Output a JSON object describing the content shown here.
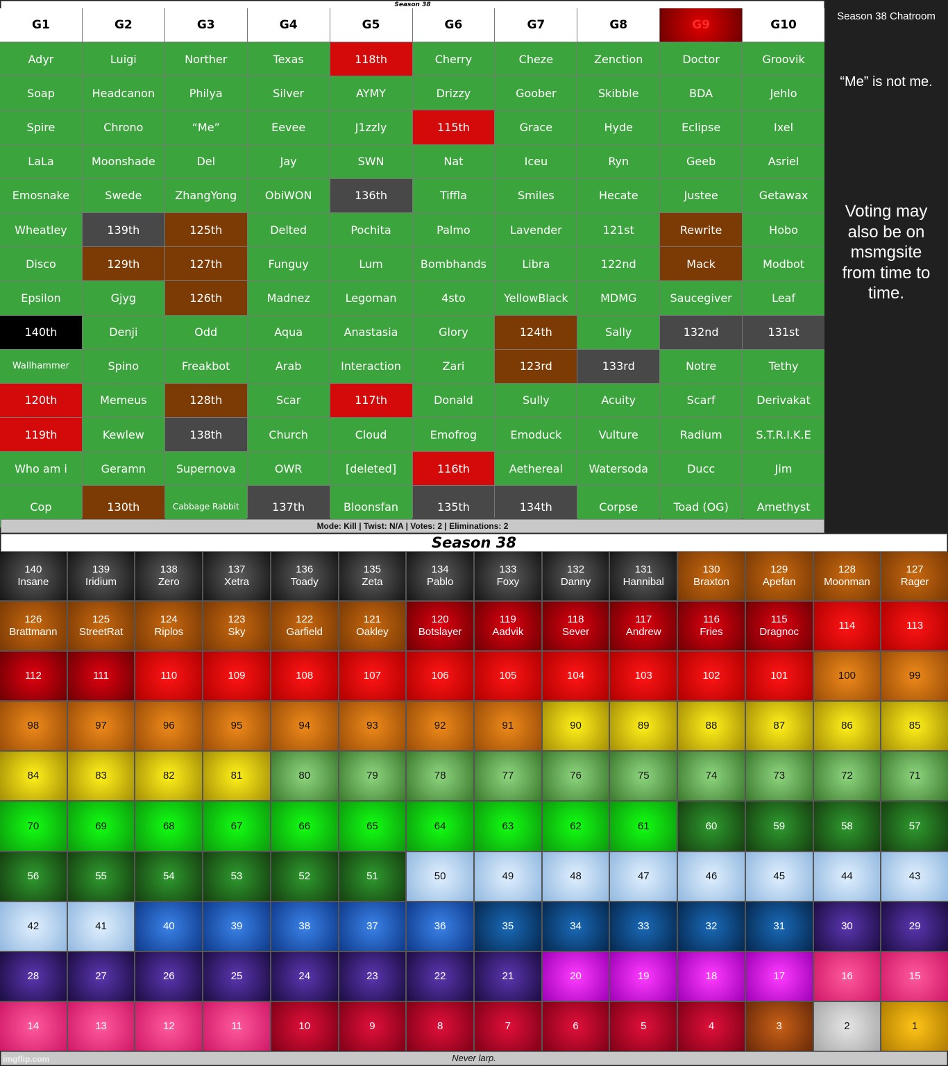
{
  "top_title": "Season 38",
  "group_headers": [
    "G1",
    "G2",
    "G3",
    "G4",
    "G5",
    "G6",
    "G7",
    "G8",
    "G9",
    "G10"
  ],
  "group_rows": [
    [
      "Adyr",
      "Luigi",
      "Norther",
      "Texas",
      "118th",
      "Cherry",
      "Cheze",
      "Zenction",
      "Doctor",
      "Groovik"
    ],
    [
      "Soap",
      "Headcanon",
      "Philya",
      "Silver",
      "AYMY",
      "Drizzy",
      "Goober",
      "Skibble",
      "BDA",
      "Jehlo"
    ],
    [
      "Spire",
      "Chrono",
      "“Me”",
      "Eevee",
      "J1zzly",
      "115th",
      "Grace",
      "Hyde",
      "Eclipse",
      "Ixel"
    ],
    [
      "LaLa",
      "Moonshade",
      "Del",
      "Jay",
      "SWN",
      "Nat",
      "Iceu",
      "Ryn",
      "Geeb",
      "Asriel"
    ],
    [
      "Emosnake",
      "Swede",
      "ZhangYong",
      "ObiWON",
      "136th",
      "Tiffla",
      "Smiles",
      "Hecate",
      "Justee",
      "Getawax"
    ],
    [
      "Wheatley",
      "139th",
      "125th",
      "Delted",
      "Pochita",
      "Palmo",
      "Lavender",
      "121st",
      "Rewrite",
      "Hobo"
    ],
    [
      "Disco",
      "129th",
      "127th",
      "Funguy",
      "Lum",
      "Bombhands",
      "Libra",
      "122nd",
      "Mack",
      "Modbot"
    ],
    [
      "Epsilon",
      "Gjyg",
      "126th",
      "Madnez",
      "Legoman",
      "4sto",
      "YellowBlack",
      "MDMG",
      "Saucegiver",
      "Leaf"
    ],
    [
      "140th",
      "Denji",
      "Odd",
      "Aqua",
      "Anastasia",
      "Glory",
      "124th",
      "Sally",
      "132nd",
      "131st"
    ],
    [
      "Wallhammer",
      "Spino",
      "Freakbot",
      "Arab",
      "Interaction",
      "Zari",
      "123rd",
      "133rd",
      "Notre",
      "Tethy"
    ],
    [
      "120th",
      "Memeus",
      "128th",
      "Scar",
      "117th",
      "Donald",
      "Sully",
      "Acuity",
      "Scarf",
      "Derivakat"
    ],
    [
      "119th",
      "Kewlew",
      "138th",
      "Church",
      "Cloud",
      "Emofrog",
      "Emoduck",
      "Vulture",
      "Radium",
      "S.T.R.I.K.E"
    ],
    [
      "Who am i",
      "Geramn",
      "Supernova",
      "OWR",
      "[deleted]",
      "116th",
      "Aethereal",
      "Watersoda",
      "Ducc",
      "Jim"
    ],
    [
      "Cop",
      "130th",
      "Cabbage Rabbit",
      "137th",
      "Bloonsfan",
      "135th",
      "134th",
      "Corpse",
      "Toad (OG)",
      "Amethyst"
    ]
  ],
  "group_cell_colors": [
    "gggg r gggg g",
    "gggggggggg",
    "ggggg r gggg",
    "gggggggggg",
    "gggg k ggggg",
    "g k o ggggg o gg",
    "g o o ggggg o gg",
    "gg o ggggggg",
    "b ggggg o g k k",
    "gggggg o k gg",
    "r g o g r ggggg",
    "r g k ggggggg",
    "ggggg r gggg",
    "g o g k g k k ggg"
  ],
  "mode_bar": "Mode: Kill | Twist: N/A | Votes: 2 | Eliminations: 2",
  "chatroom_title": "Season 38 Chatroom",
  "chatroom_note": "“Me” is not me.",
  "chatroom_voting": "Voting may also be on msmgsite from time to time.",
  "bottom_title": "Season 38",
  "placements": [
    {
      "rank": "140",
      "name": "Insane",
      "tone": "dark"
    },
    {
      "rank": "139",
      "name": "Iridium",
      "tone": "dark"
    },
    {
      "rank": "138",
      "name": "Zero",
      "tone": "dark"
    },
    {
      "rank": "137",
      "name": "Xetra",
      "tone": "dark"
    },
    {
      "rank": "136",
      "name": "Toady",
      "tone": "dark"
    },
    {
      "rank": "135",
      "name": "Zeta",
      "tone": "dark"
    },
    {
      "rank": "134",
      "name": "Pablo",
      "tone": "dark"
    },
    {
      "rank": "133",
      "name": "Foxy",
      "tone": "dark"
    },
    {
      "rank": "132",
      "name": "Danny",
      "tone": "dark"
    },
    {
      "rank": "131",
      "name": "Hannibal",
      "tone": "dark"
    },
    {
      "rank": "130",
      "name": "Braxton",
      "tone": "brown"
    },
    {
      "rank": "129",
      "name": "Apefan",
      "tone": "brown"
    },
    {
      "rank": "128",
      "name": "Moonman",
      "tone": "brown"
    },
    {
      "rank": "127",
      "name": "Rager",
      "tone": "brown"
    },
    {
      "rank": "126",
      "name": "Brattmann",
      "tone": "brown"
    },
    {
      "rank": "125",
      "name": "StreetRat",
      "tone": "brown"
    },
    {
      "rank": "124",
      "name": "Riplos",
      "tone": "brown"
    },
    {
      "rank": "123",
      "name": "Sky",
      "tone": "brown"
    },
    {
      "rank": "122",
      "name": "Garfield",
      "tone": "brown"
    },
    {
      "rank": "121",
      "name": "Oakley",
      "tone": "brown"
    },
    {
      "rank": "120",
      "name": "Botslayer",
      "tone": "dred"
    },
    {
      "rank": "119",
      "name": "Aadvik",
      "tone": "dred"
    },
    {
      "rank": "118",
      "name": "Sever",
      "tone": "dred"
    },
    {
      "rank": "117",
      "name": "Andrew",
      "tone": "dred"
    },
    {
      "rank": "116",
      "name": "Fries",
      "tone": "dred"
    },
    {
      "rank": "115",
      "name": "Dragnoc",
      "tone": "dred"
    },
    {
      "rank": "114",
      "name": "",
      "tone": "red"
    },
    {
      "rank": "113",
      "name": "",
      "tone": "red"
    },
    {
      "rank": "112",
      "name": "",
      "tone": "dred"
    },
    {
      "rank": "111",
      "name": "",
      "tone": "dred"
    },
    {
      "rank": "110",
      "name": "",
      "tone": "red"
    },
    {
      "rank": "109",
      "name": "",
      "tone": "red"
    },
    {
      "rank": "108",
      "name": "",
      "tone": "red"
    },
    {
      "rank": "107",
      "name": "",
      "tone": "red"
    },
    {
      "rank": "106",
      "name": "",
      "tone": "red"
    },
    {
      "rank": "105",
      "name": "",
      "tone": "red"
    },
    {
      "rank": "104",
      "name": "",
      "tone": "red"
    },
    {
      "rank": "103",
      "name": "",
      "tone": "red"
    },
    {
      "rank": "102",
      "name": "",
      "tone": "red"
    },
    {
      "rank": "101",
      "name": "",
      "tone": "red"
    },
    {
      "rank": "100",
      "name": "",
      "tone": "orange"
    },
    {
      "rank": "99",
      "name": "",
      "tone": "orange"
    },
    {
      "rank": "98",
      "name": "",
      "tone": "orange"
    },
    {
      "rank": "97",
      "name": "",
      "tone": "orange"
    },
    {
      "rank": "96",
      "name": "",
      "tone": "orange"
    },
    {
      "rank": "95",
      "name": "",
      "tone": "orange"
    },
    {
      "rank": "94",
      "name": "",
      "tone": "orange"
    },
    {
      "rank": "93",
      "name": "",
      "tone": "orange"
    },
    {
      "rank": "92",
      "name": "",
      "tone": "orange"
    },
    {
      "rank": "91",
      "name": "",
      "tone": "orange"
    },
    {
      "rank": "90",
      "name": "",
      "tone": "yellow"
    },
    {
      "rank": "89",
      "name": "",
      "tone": "yellow"
    },
    {
      "rank": "88",
      "name": "",
      "tone": "yellow"
    },
    {
      "rank": "87",
      "name": "",
      "tone": "yellow"
    },
    {
      "rank": "86",
      "name": "",
      "tone": "yellow"
    },
    {
      "rank": "85",
      "name": "",
      "tone": "yellow"
    },
    {
      "rank": "84",
      "name": "",
      "tone": "yellow"
    },
    {
      "rank": "83",
      "name": "",
      "tone": "yellow"
    },
    {
      "rank": "82",
      "name": "",
      "tone": "yellow"
    },
    {
      "rank": "81",
      "name": "",
      "tone": "yellow"
    },
    {
      "rank": "80",
      "name": "",
      "tone": "lgreen"
    },
    {
      "rank": "79",
      "name": "",
      "tone": "lgreen"
    },
    {
      "rank": "78",
      "name": "",
      "tone": "lgreen"
    },
    {
      "rank": "77",
      "name": "",
      "tone": "lgreen"
    },
    {
      "rank": "76",
      "name": "",
      "tone": "lgreen"
    },
    {
      "rank": "75",
      "name": "",
      "tone": "lgreen"
    },
    {
      "rank": "74",
      "name": "",
      "tone": "lgreen"
    },
    {
      "rank": "73",
      "name": "",
      "tone": "lgreen"
    },
    {
      "rank": "72",
      "name": "",
      "tone": "lgreen"
    },
    {
      "rank": "71",
      "name": "",
      "tone": "lgreen"
    },
    {
      "rank": "70",
      "name": "",
      "tone": "green"
    },
    {
      "rank": "69",
      "name": "",
      "tone": "green"
    },
    {
      "rank": "68",
      "name": "",
      "tone": "green"
    },
    {
      "rank": "67",
      "name": "",
      "tone": "green"
    },
    {
      "rank": "66",
      "name": "",
      "tone": "green"
    },
    {
      "rank": "65",
      "name": "",
      "tone": "green"
    },
    {
      "rank": "64",
      "name": "",
      "tone": "green"
    },
    {
      "rank": "63",
      "name": "",
      "tone": "green"
    },
    {
      "rank": "62",
      "name": "",
      "tone": "green"
    },
    {
      "rank": "61",
      "name": "",
      "tone": "green"
    },
    {
      "rank": "60",
      "name": "",
      "tone": "dgreen"
    },
    {
      "rank": "59",
      "name": "",
      "tone": "dgreen"
    },
    {
      "rank": "58",
      "name": "",
      "tone": "dgreen"
    },
    {
      "rank": "57",
      "name": "",
      "tone": "dgreen"
    },
    {
      "rank": "56",
      "name": "",
      "tone": "dgreen"
    },
    {
      "rank": "55",
      "name": "",
      "tone": "dgreen"
    },
    {
      "rank": "54",
      "name": "",
      "tone": "dgreen"
    },
    {
      "rank": "53",
      "name": "",
      "tone": "dgreen"
    },
    {
      "rank": "52",
      "name": "",
      "tone": "dgreen"
    },
    {
      "rank": "51",
      "name": "",
      "tone": "dgreen"
    },
    {
      "rank": "50",
      "name": "",
      "tone": "lblue"
    },
    {
      "rank": "49",
      "name": "",
      "tone": "lblue"
    },
    {
      "rank": "48",
      "name": "",
      "tone": "lblue"
    },
    {
      "rank": "47",
      "name": "",
      "tone": "lblue"
    },
    {
      "rank": "46",
      "name": "",
      "tone": "lblue"
    },
    {
      "rank": "45",
      "name": "",
      "tone": "lblue"
    },
    {
      "rank": "44",
      "name": "",
      "tone": "lblue"
    },
    {
      "rank": "43",
      "name": "",
      "tone": "lblue"
    },
    {
      "rank": "42",
      "name": "",
      "tone": "lblue"
    },
    {
      "rank": "41",
      "name": "",
      "tone": "lblue"
    },
    {
      "rank": "40",
      "name": "",
      "tone": "blue"
    },
    {
      "rank": "39",
      "name": "",
      "tone": "blue"
    },
    {
      "rank": "38",
      "name": "",
      "tone": "blue"
    },
    {
      "rank": "37",
      "name": "",
      "tone": "blue"
    },
    {
      "rank": "36",
      "name": "",
      "tone": "blue"
    },
    {
      "rank": "35",
      "name": "",
      "tone": "nblue"
    },
    {
      "rank": "34",
      "name": "",
      "tone": "nblue"
    },
    {
      "rank": "33",
      "name": "",
      "tone": "nblue"
    },
    {
      "rank": "32",
      "name": "",
      "tone": "nblue"
    },
    {
      "rank": "31",
      "name": "",
      "tone": "nblue"
    },
    {
      "rank": "30",
      "name": "",
      "tone": "purple"
    },
    {
      "rank": "29",
      "name": "",
      "tone": "purple"
    },
    {
      "rank": "28",
      "name": "",
      "tone": "purple"
    },
    {
      "rank": "27",
      "name": "",
      "tone": "purple"
    },
    {
      "rank": "26",
      "name": "",
      "tone": "purple"
    },
    {
      "rank": "25",
      "name": "",
      "tone": "purple"
    },
    {
      "rank": "24",
      "name": "",
      "tone": "purple"
    },
    {
      "rank": "23",
      "name": "",
      "tone": "purple"
    },
    {
      "rank": "22",
      "name": "",
      "tone": "purple"
    },
    {
      "rank": "21",
      "name": "",
      "tone": "purple"
    },
    {
      "rank": "20",
      "name": "",
      "tone": "magenta"
    },
    {
      "rank": "19",
      "name": "",
      "tone": "magenta"
    },
    {
      "rank": "18",
      "name": "",
      "tone": "magenta"
    },
    {
      "rank": "17",
      "name": "",
      "tone": "magenta"
    },
    {
      "rank": "16",
      "name": "",
      "tone": "pink"
    },
    {
      "rank": "15",
      "name": "",
      "tone": "pink"
    },
    {
      "rank": "14",
      "name": "",
      "tone": "pink"
    },
    {
      "rank": "13",
      "name": "",
      "tone": "pink"
    },
    {
      "rank": "12",
      "name": "",
      "tone": "pink"
    },
    {
      "rank": "11",
      "name": "",
      "tone": "pink"
    },
    {
      "rank": "10",
      "name": "",
      "tone": "crimson"
    },
    {
      "rank": "9",
      "name": "",
      "tone": "crimson"
    },
    {
      "rank": "8",
      "name": "",
      "tone": "crimson"
    },
    {
      "rank": "7",
      "name": "",
      "tone": "crimson"
    },
    {
      "rank": "6",
      "name": "",
      "tone": "crimson"
    },
    {
      "rank": "5",
      "name": "",
      "tone": "crimson"
    },
    {
      "rank": "4",
      "name": "",
      "tone": "crimson"
    },
    {
      "rank": "3",
      "name": "",
      "tone": "rust"
    },
    {
      "rank": "2",
      "name": "",
      "tone": "silver"
    },
    {
      "rank": "1",
      "name": "",
      "tone": "gold"
    }
  ],
  "footer": "Never larp.",
  "watermark": "imgflip.com"
}
